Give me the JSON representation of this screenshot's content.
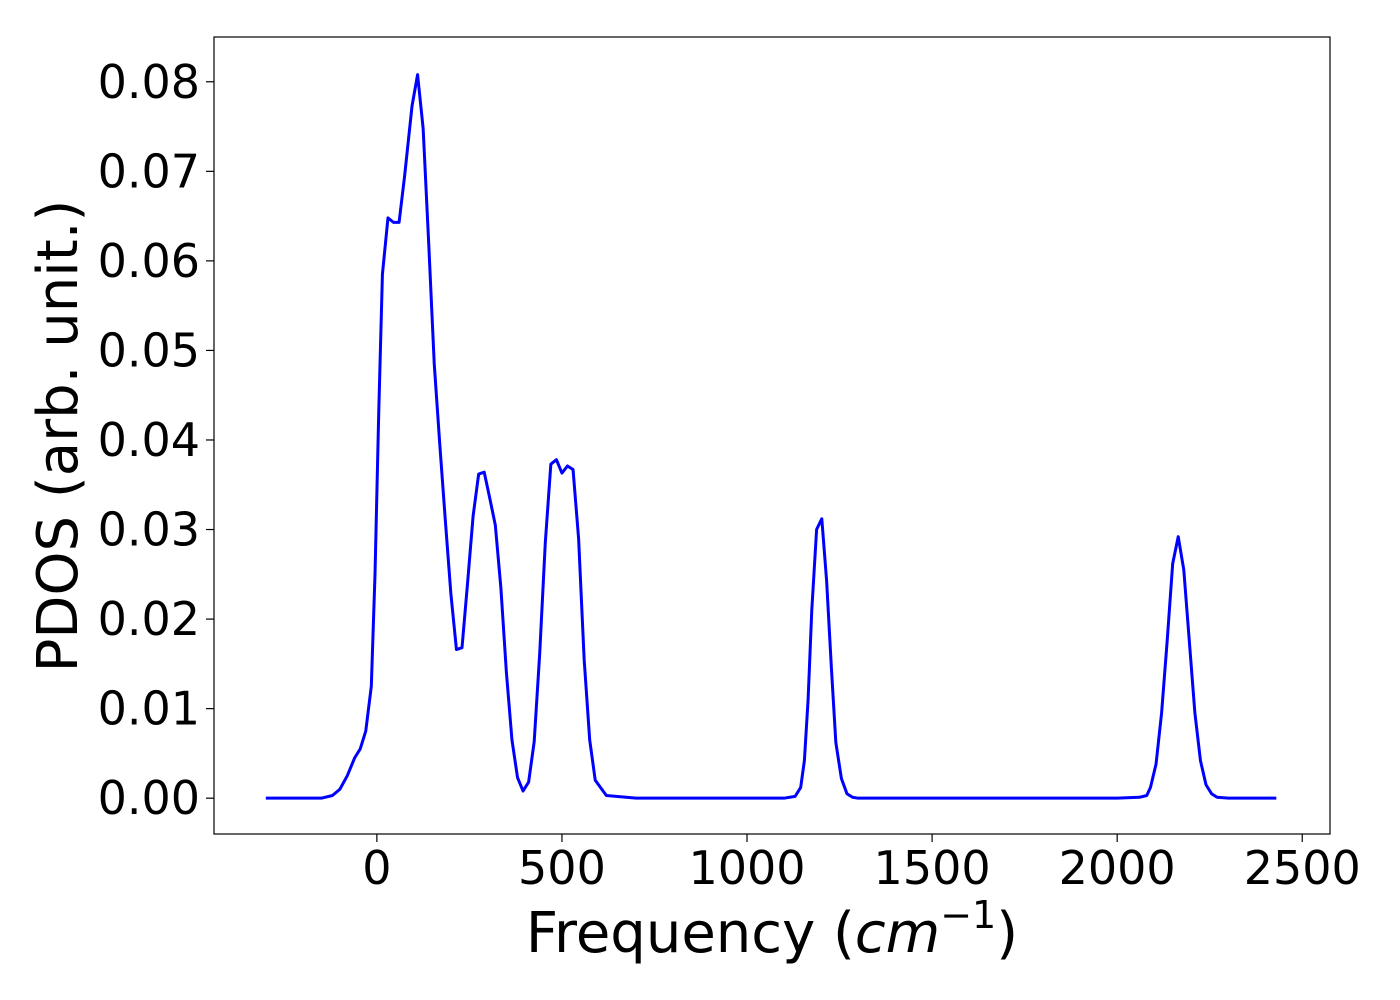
{
  "chart_data": {
    "type": "line",
    "title": "",
    "xlabel": "Frequency (cm⁻¹)",
    "xlabel_parts": {
      "prefix": "Frequency (",
      "unit": "cm",
      "exponent": "−1",
      "suffix": ")"
    },
    "ylabel": "PDOS (arb. unit.)",
    "xlim": [
      -440,
      2575
    ],
    "ylim": [
      -0.004,
      0.085
    ],
    "xticks": [
      0,
      500,
      1000,
      1500,
      2000,
      2500
    ],
    "xtick_labels": [
      "0",
      "500",
      "1000",
      "1500",
      "2000",
      "2500"
    ],
    "yticks": [
      0.0,
      0.01,
      0.02,
      0.03,
      0.04,
      0.05,
      0.06,
      0.07,
      0.08
    ],
    "ytick_labels": [
      "0.00",
      "0.01",
      "0.02",
      "0.03",
      "0.04",
      "0.05",
      "0.06",
      "0.07",
      "0.08"
    ],
    "grid": false,
    "series": [
      {
        "color": "#0000ff",
        "x": [
          -300,
          -150,
          -120,
          -100,
          -80,
          -60,
          -45,
          -30,
          -15,
          -5,
          5,
          15,
          30,
          45,
          60,
          75,
          95,
          110,
          125,
          140,
          155,
          170,
          185,
          200,
          215,
          230,
          245,
          260,
          275,
          290,
          305,
          320,
          335,
          350,
          365,
          380,
          395,
          410,
          425,
          440,
          455,
          470,
          485,
          500,
          515,
          530,
          545,
          560,
          575,
          590,
          620,
          700,
          800,
          1000,
          1100,
          1130,
          1145,
          1155,
          1165,
          1175,
          1188,
          1202,
          1215,
          1228,
          1240,
          1255,
          1270,
          1285,
          1300,
          1400,
          1600,
          1800,
          2000,
          2060,
          2080,
          2090,
          2105,
          2120,
          2135,
          2150,
          2165,
          2180,
          2195,
          2210,
          2225,
          2240,
          2255,
          2270,
          2300,
          2430
        ],
        "values": [
          0.0,
          0.0,
          0.0003,
          0.001,
          0.0025,
          0.0045,
          0.0055,
          0.0075,
          0.0125,
          0.025,
          0.043,
          0.0585,
          0.0648,
          0.0643,
          0.0643,
          0.0695,
          0.0773,
          0.0808,
          0.0748,
          0.062,
          0.0485,
          0.0395,
          0.031,
          0.0228,
          0.0166,
          0.0168,
          0.024,
          0.0315,
          0.0362,
          0.0364,
          0.0335,
          0.0305,
          0.0235,
          0.014,
          0.0065,
          0.0023,
          0.0008,
          0.0018,
          0.0063,
          0.0162,
          0.0285,
          0.0373,
          0.0378,
          0.0363,
          0.0371,
          0.0367,
          0.029,
          0.0155,
          0.0065,
          0.002,
          0.0003,
          0.0,
          0.0,
          0.0,
          0.0,
          0.0002,
          0.0012,
          0.0042,
          0.011,
          0.021,
          0.03,
          0.0312,
          0.0243,
          0.0145,
          0.0062,
          0.0022,
          0.0005,
          0.0001,
          0.0,
          0.0,
          0.0,
          0.0,
          0.0,
          0.0001,
          0.0003,
          0.0012,
          0.0038,
          0.0095,
          0.0175,
          0.0262,
          0.0292,
          0.0255,
          0.0175,
          0.0095,
          0.0042,
          0.0015,
          0.0005,
          0.0001,
          0.0,
          0.0
        ]
      }
    ]
  }
}
